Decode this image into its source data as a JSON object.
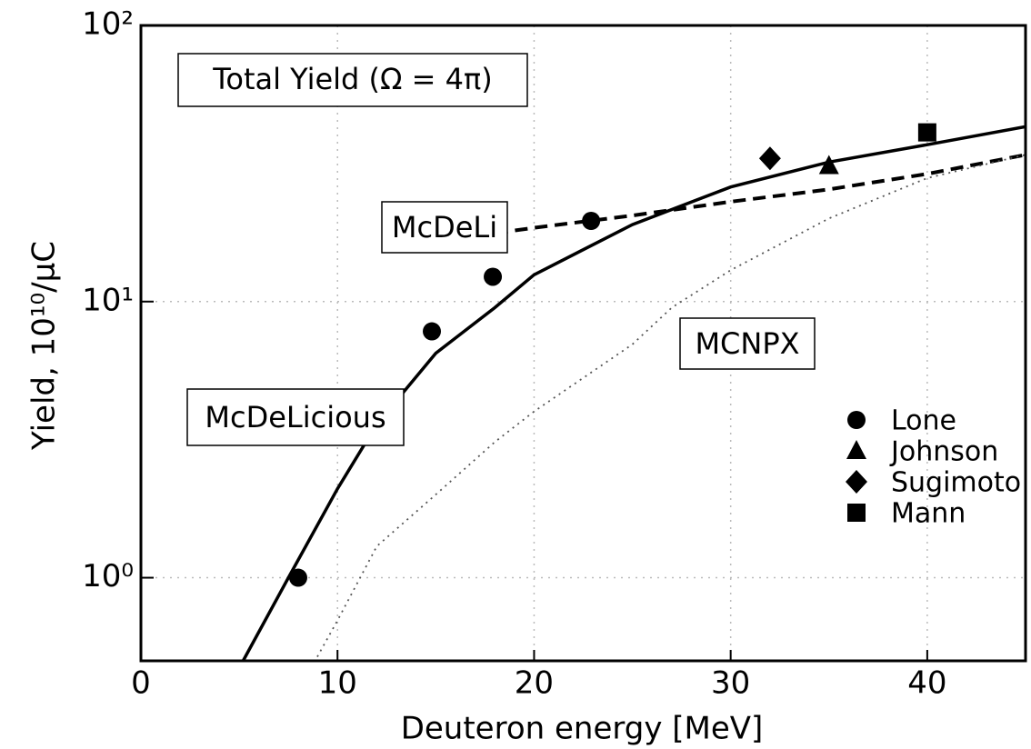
{
  "chart_data": {
    "type": "line",
    "annotation": "Total Yield (Ω = 4π)",
    "x_label": "Deuteron energy [MeV]",
    "y_label": "Yield,   10¹⁰/μC",
    "xlim": [
      0,
      45
    ],
    "ylim": [
      0.5,
      100
    ],
    "log_y": true,
    "grid": true,
    "xticks": [
      0,
      10,
      20,
      30,
      40
    ],
    "yticks": [
      {
        "value": 1,
        "label": "10⁰"
      },
      {
        "value": 10,
        "label": "10¹"
      },
      {
        "value": 100,
        "label": "10²"
      }
    ],
    "series": [
      {
        "name": "McDeLicious",
        "style": "solid",
        "color": "#000000",
        "x": [
          5.2,
          7.5,
          10,
          12,
          15,
          18,
          20,
          25,
          30,
          35,
          40,
          45
        ],
        "values": [
          0.5,
          1.0,
          2.1,
          3.6,
          6.5,
          9.5,
          12.5,
          19,
          26,
          32,
          37,
          43
        ]
      },
      {
        "name": "McDeLi",
        "style": "dashed",
        "color": "#000000",
        "x": [
          15,
          20,
          25,
          30,
          35,
          40,
          45
        ],
        "values": [
          16.5,
          18.5,
          20.5,
          23,
          25.5,
          29,
          34
        ]
      },
      {
        "name": "MCNPX",
        "style": "dotted",
        "color": "#555555",
        "x": [
          8.5,
          10,
          12,
          15,
          18,
          20,
          25,
          27,
          30,
          35,
          40,
          45
        ],
        "values": [
          0.45,
          0.7,
          1.3,
          2.0,
          3.1,
          4.0,
          7.0,
          9.5,
          13,
          20,
          28,
          34
        ]
      },
      {
        "name": "Lone",
        "marker": "circle",
        "color": "#000000",
        "x": [
          8,
          14.8,
          17.9,
          22.9
        ],
        "values": [
          1.0,
          7.8,
          12.3,
          19.6
        ]
      },
      {
        "name": "Johnson",
        "marker": "triangle",
        "color": "#000000",
        "x": [
          35
        ],
        "values": [
          31
        ]
      },
      {
        "name": "Sugimoto",
        "marker": "diamond",
        "color": "#000000",
        "x": [
          32
        ],
        "values": [
          33
        ]
      },
      {
        "name": "Mann",
        "marker": "square",
        "color": "#000000",
        "x": [
          40
        ],
        "values": [
          41
        ]
      }
    ]
  }
}
